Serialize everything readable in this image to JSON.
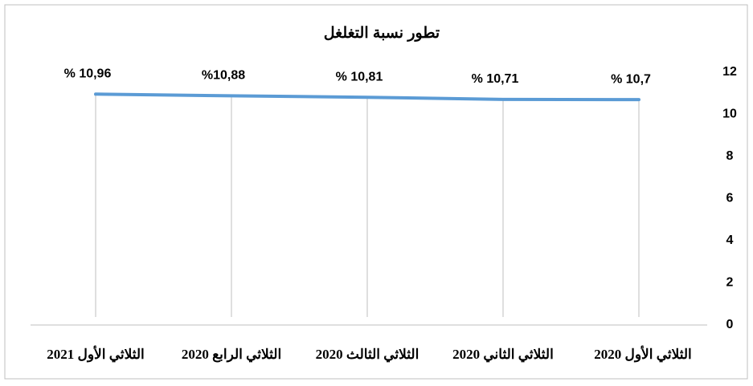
{
  "chart_data": {
    "type": "line",
    "title": "تطور نسبة التغلغل",
    "categories": [
      "الثلاثي الأول 2020",
      "الثلاثي الثاني 2020",
      "الثلاثي الثالث 2020",
      "الثلاثي الرابع 2020",
      "الثلاثي الأول 2021"
    ],
    "values": [
      10.7,
      10.71,
      10.81,
      10.88,
      10.96
    ],
    "value_labels": [
      "% 10,7",
      "% 10,71",
      "% 10,81",
      "%10,88",
      "% 10,96"
    ],
    "color": "#5b9bd5",
    "ylim": [
      0,
      12
    ],
    "yticks": [
      0,
      2,
      4,
      6,
      8,
      10,
      12
    ],
    "grid": true
  }
}
